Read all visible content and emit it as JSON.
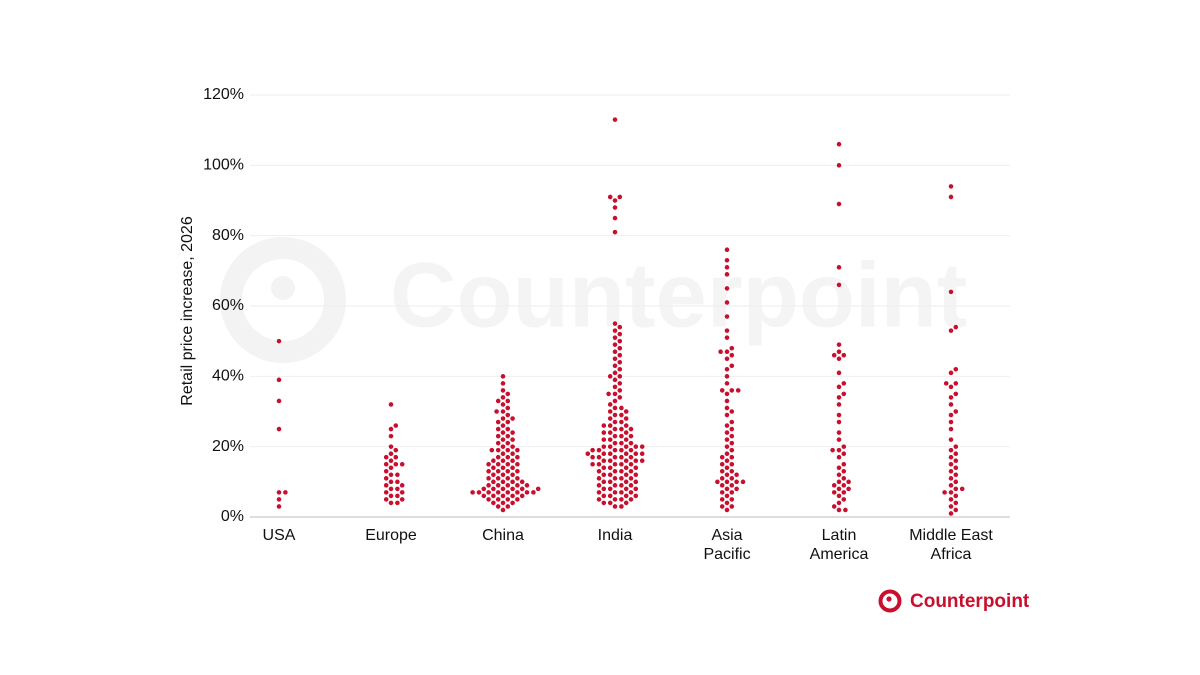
{
  "chart_data": {
    "type": "beeswarm",
    "y_label": "Retail price increase, 2026",
    "watermark": "Counterpoint",
    "logo": "Counterpoint",
    "categories": [
      "USA",
      "Europe",
      "China",
      "India",
      "Asia\nPacific",
      "Latin\nAmerica",
      "Middle East\nAfrica"
    ],
    "color": "#c8102e",
    "values": [
      [
        50,
        39,
        33,
        25,
        7,
        7,
        5,
        3
      ],
      [
        32,
        26,
        25,
        23,
        20,
        19,
        18,
        17,
        17,
        16,
        15,
        15,
        15,
        14,
        13,
        12,
        12,
        11,
        10,
        10,
        9,
        9,
        8,
        8,
        7,
        7,
        6,
        6,
        5,
        5,
        4,
        4
      ],
      [
        40,
        38,
        36,
        35,
        34,
        33,
        33,
        32,
        31,
        30,
        30,
        29,
        28,
        28,
        27,
        27,
        26,
        25,
        25,
        24,
        24,
        23,
        23,
        22,
        22,
        21,
        21,
        20,
        20,
        19,
        19,
        19,
        19,
        18,
        18,
        17,
        17,
        17,
        16,
        16,
        16,
        15,
        15,
        15,
        15,
        14,
        14,
        14,
        13,
        13,
        13,
        13,
        12,
        12,
        12,
        11,
        11,
        11,
        11,
        10,
        10,
        10,
        10,
        9,
        9,
        9,
        9,
        9,
        8,
        8,
        8,
        8,
        8,
        8,
        7,
        7,
        7,
        7,
        7,
        7,
        7,
        7,
        6,
        6,
        6,
        6,
        6,
        5,
        5,
        5,
        5,
        4,
        4,
        4,
        3,
        3,
        2
      ],
      [
        113,
        91,
        90,
        91,
        88,
        85,
        81,
        55,
        54,
        53,
        52,
        51,
        50,
        49,
        48,
        47,
        46,
        45,
        44,
        43,
        42,
        41,
        40,
        40,
        39,
        38,
        37,
        36,
        35,
        35,
        34,
        33,
        32,
        31,
        31,
        30,
        30,
        29,
        29,
        28,
        28,
        27,
        27,
        26,
        26,
        26,
        25,
        25,
        25,
        24,
        24,
        24,
        23,
        23,
        23,
        22,
        22,
        22,
        21,
        21,
        21,
        20,
        20,
        20,
        20,
        20,
        19,
        19,
        19,
        19,
        19,
        18,
        18,
        18,
        18,
        18,
        18,
        17,
        17,
        17,
        17,
        17,
        16,
        16,
        16,
        16,
        16,
        15,
        15,
        15,
        15,
        15,
        14,
        14,
        14,
        14,
        13,
        13,
        13,
        13,
        12,
        12,
        12,
        12,
        11,
        11,
        11,
        11,
        10,
        10,
        10,
        10,
        9,
        9,
        9,
        9,
        8,
        8,
        8,
        8,
        7,
        7,
        7,
        7,
        6,
        6,
        6,
        6,
        5,
        5,
        5,
        5,
        4,
        4,
        4,
        3,
        3
      ],
      [
        76,
        73,
        71,
        69,
        65,
        61,
        57,
        53,
        51,
        48,
        47,
        47,
        46,
        45,
        43,
        42,
        40,
        38,
        36,
        36,
        36,
        35,
        33,
        31,
        30,
        29,
        27,
        26,
        25,
        24,
        23,
        22,
        21,
        20,
        19,
        18,
        17,
        17,
        16,
        15,
        15,
        14,
        13,
        13,
        12,
        12,
        11,
        11,
        10,
        10,
        10,
        10,
        9,
        9,
        8,
        8,
        7,
        7,
        6,
        5,
        5,
        4,
        3,
        3,
        2
      ],
      [
        106,
        100,
        89,
        71,
        66,
        49,
        47,
        46,
        46,
        45,
        41,
        38,
        37,
        35,
        34,
        32,
        29,
        27,
        24,
        22,
        20,
        19,
        19,
        18,
        17,
        15,
        14,
        13,
        12,
        11,
        10,
        10,
        9,
        9,
        8,
        8,
        7,
        7,
        6,
        5,
        4,
        3,
        2,
        2
      ],
      [
        94,
        91,
        64,
        54,
        53,
        42,
        41,
        38,
        38,
        37,
        35,
        34,
        32,
        30,
        29,
        27,
        25,
        22,
        20,
        19,
        18,
        17,
        16,
        15,
        14,
        13,
        12,
        11,
        10,
        9,
        8,
        8,
        7,
        7,
        6,
        5,
        4,
        3,
        2,
        1
      ]
    ],
    "ylim": [
      0,
      120
    ],
    "yticks": [
      {
        "value": 0,
        "label": "0%"
      },
      {
        "value": 20,
        "label": "20%"
      },
      {
        "value": 40,
        "label": "40%"
      },
      {
        "value": 60,
        "label": "60%"
      },
      {
        "value": 80,
        "label": "80%"
      },
      {
        "value": 100,
        "label": "100%"
      },
      {
        "value": 120,
        "label": "120%"
      }
    ],
    "grid": true
  }
}
